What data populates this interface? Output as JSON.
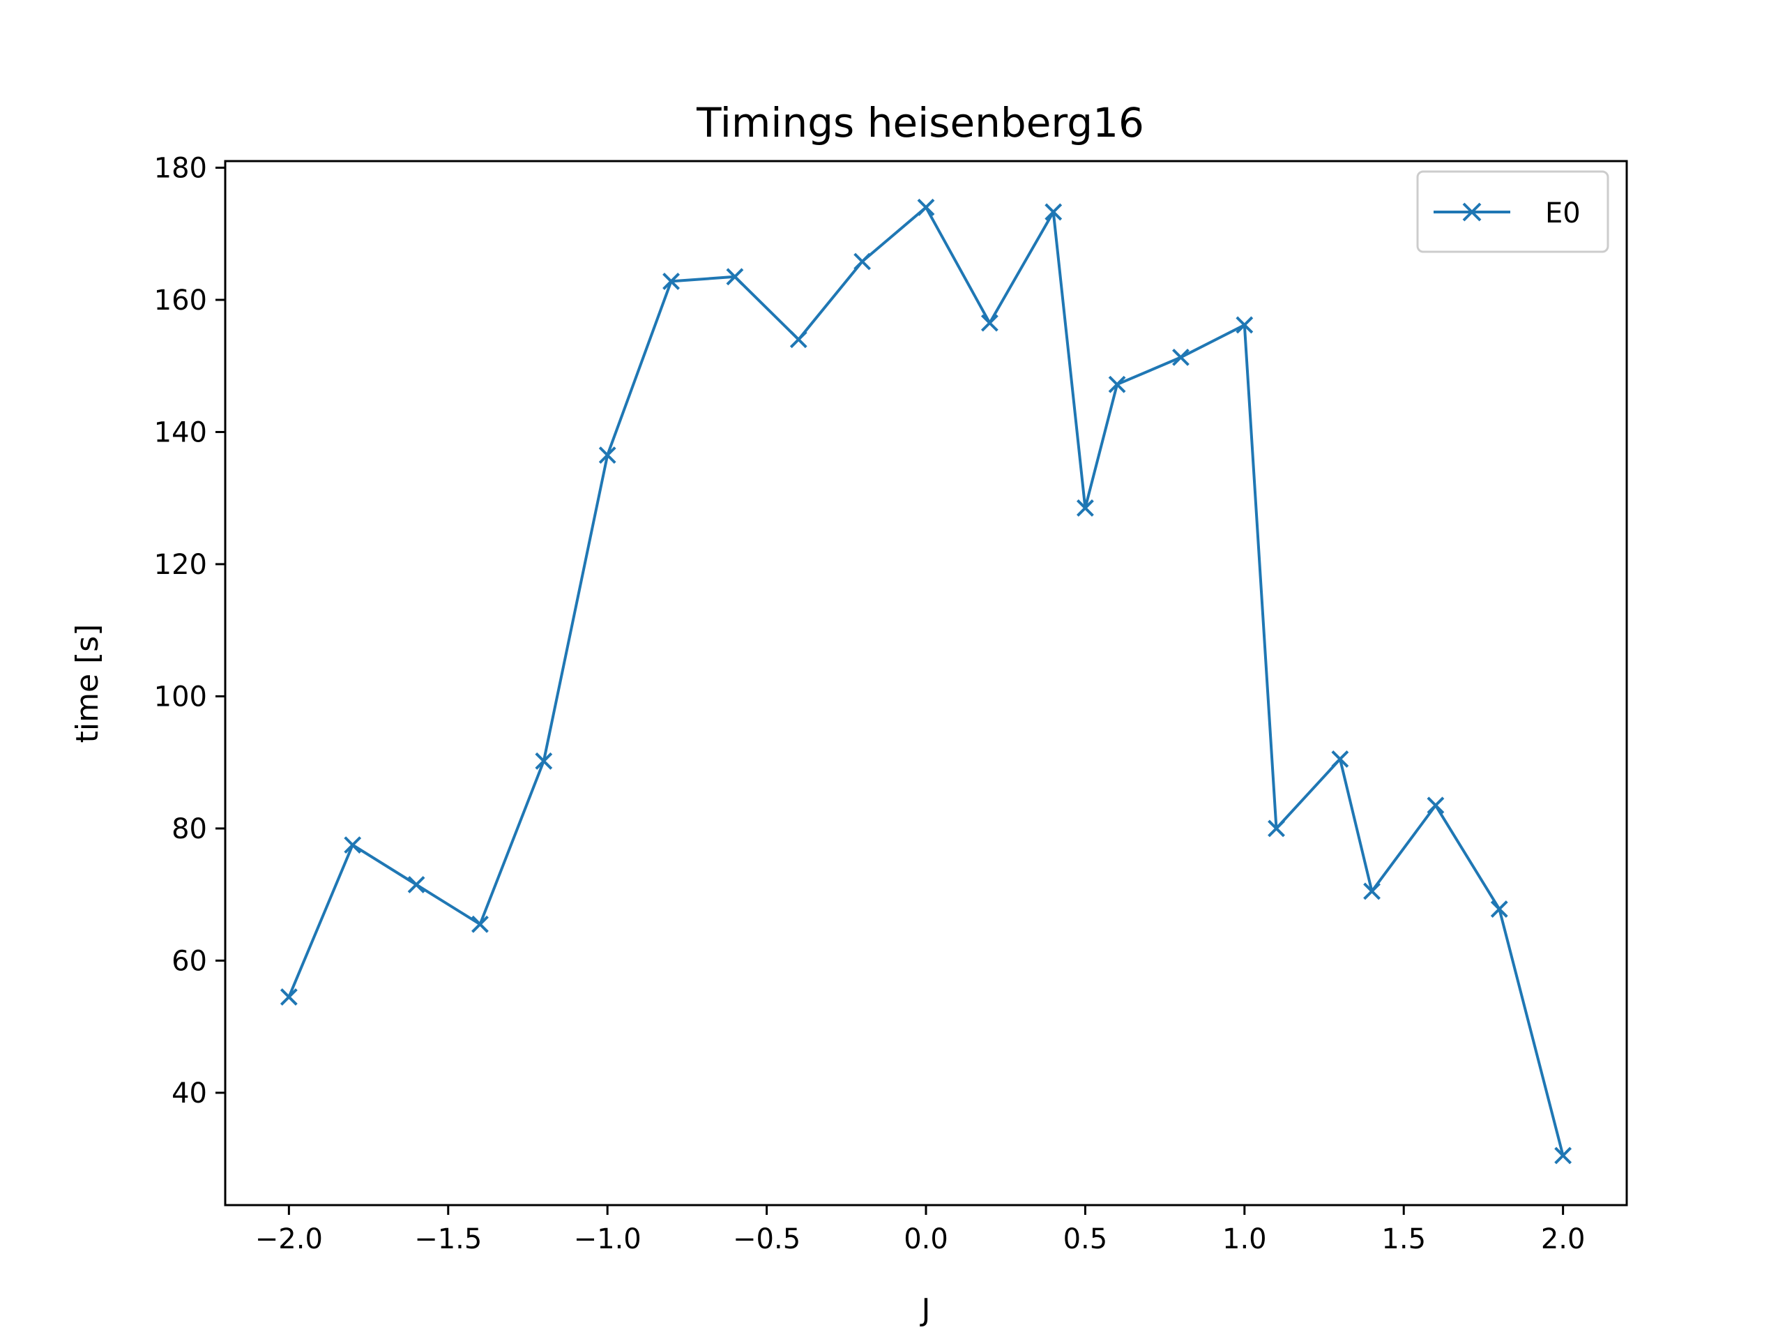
{
  "chart_data": {
    "type": "line",
    "title": "Timings heisenberg16",
    "xlabel": "J",
    "ylabel": "time [s]",
    "xlim": [
      -2.2,
      2.2
    ],
    "ylim": [
      23,
      181
    ],
    "xticks": [
      -2.0,
      -1.5,
      -1.0,
      -0.5,
      0.0,
      0.5,
      1.0,
      1.5,
      2.0
    ],
    "xtick_labels": [
      "−2.0",
      "−1.5",
      "−1.0",
      "−0.5",
      "0.0",
      "0.5",
      "1.0",
      "1.5",
      "2.0"
    ],
    "yticks": [
      40,
      60,
      80,
      100,
      120,
      140,
      160,
      180
    ],
    "ytick_labels": [
      "40",
      "60",
      "80",
      "100",
      "120",
      "140",
      "160",
      "180"
    ],
    "grid": false,
    "legend_position": "top-right",
    "series": [
      {
        "name": "E0",
        "color": "#1f77b4",
        "marker": "x",
        "x": [
          -2.0,
          -1.8,
          -1.6,
          -1.4,
          -1.2,
          -1.0,
          -0.8,
          -0.6,
          -0.4,
          -0.2,
          0.0,
          0.2,
          0.4,
          0.5,
          0.6,
          0.8,
          1.0,
          1.1,
          1.3,
          1.4,
          1.6,
          1.8,
          2.0
        ],
        "y": [
          54.5,
          77.5,
          71.5,
          65.5,
          90.2,
          136.5,
          162.8,
          163.5,
          154.0,
          165.8,
          174.0,
          156.5,
          173.3,
          128.5,
          147.2,
          151.3,
          156.2,
          80.0,
          90.5,
          70.5,
          83.5,
          67.8,
          30.5
        ]
      }
    ]
  }
}
